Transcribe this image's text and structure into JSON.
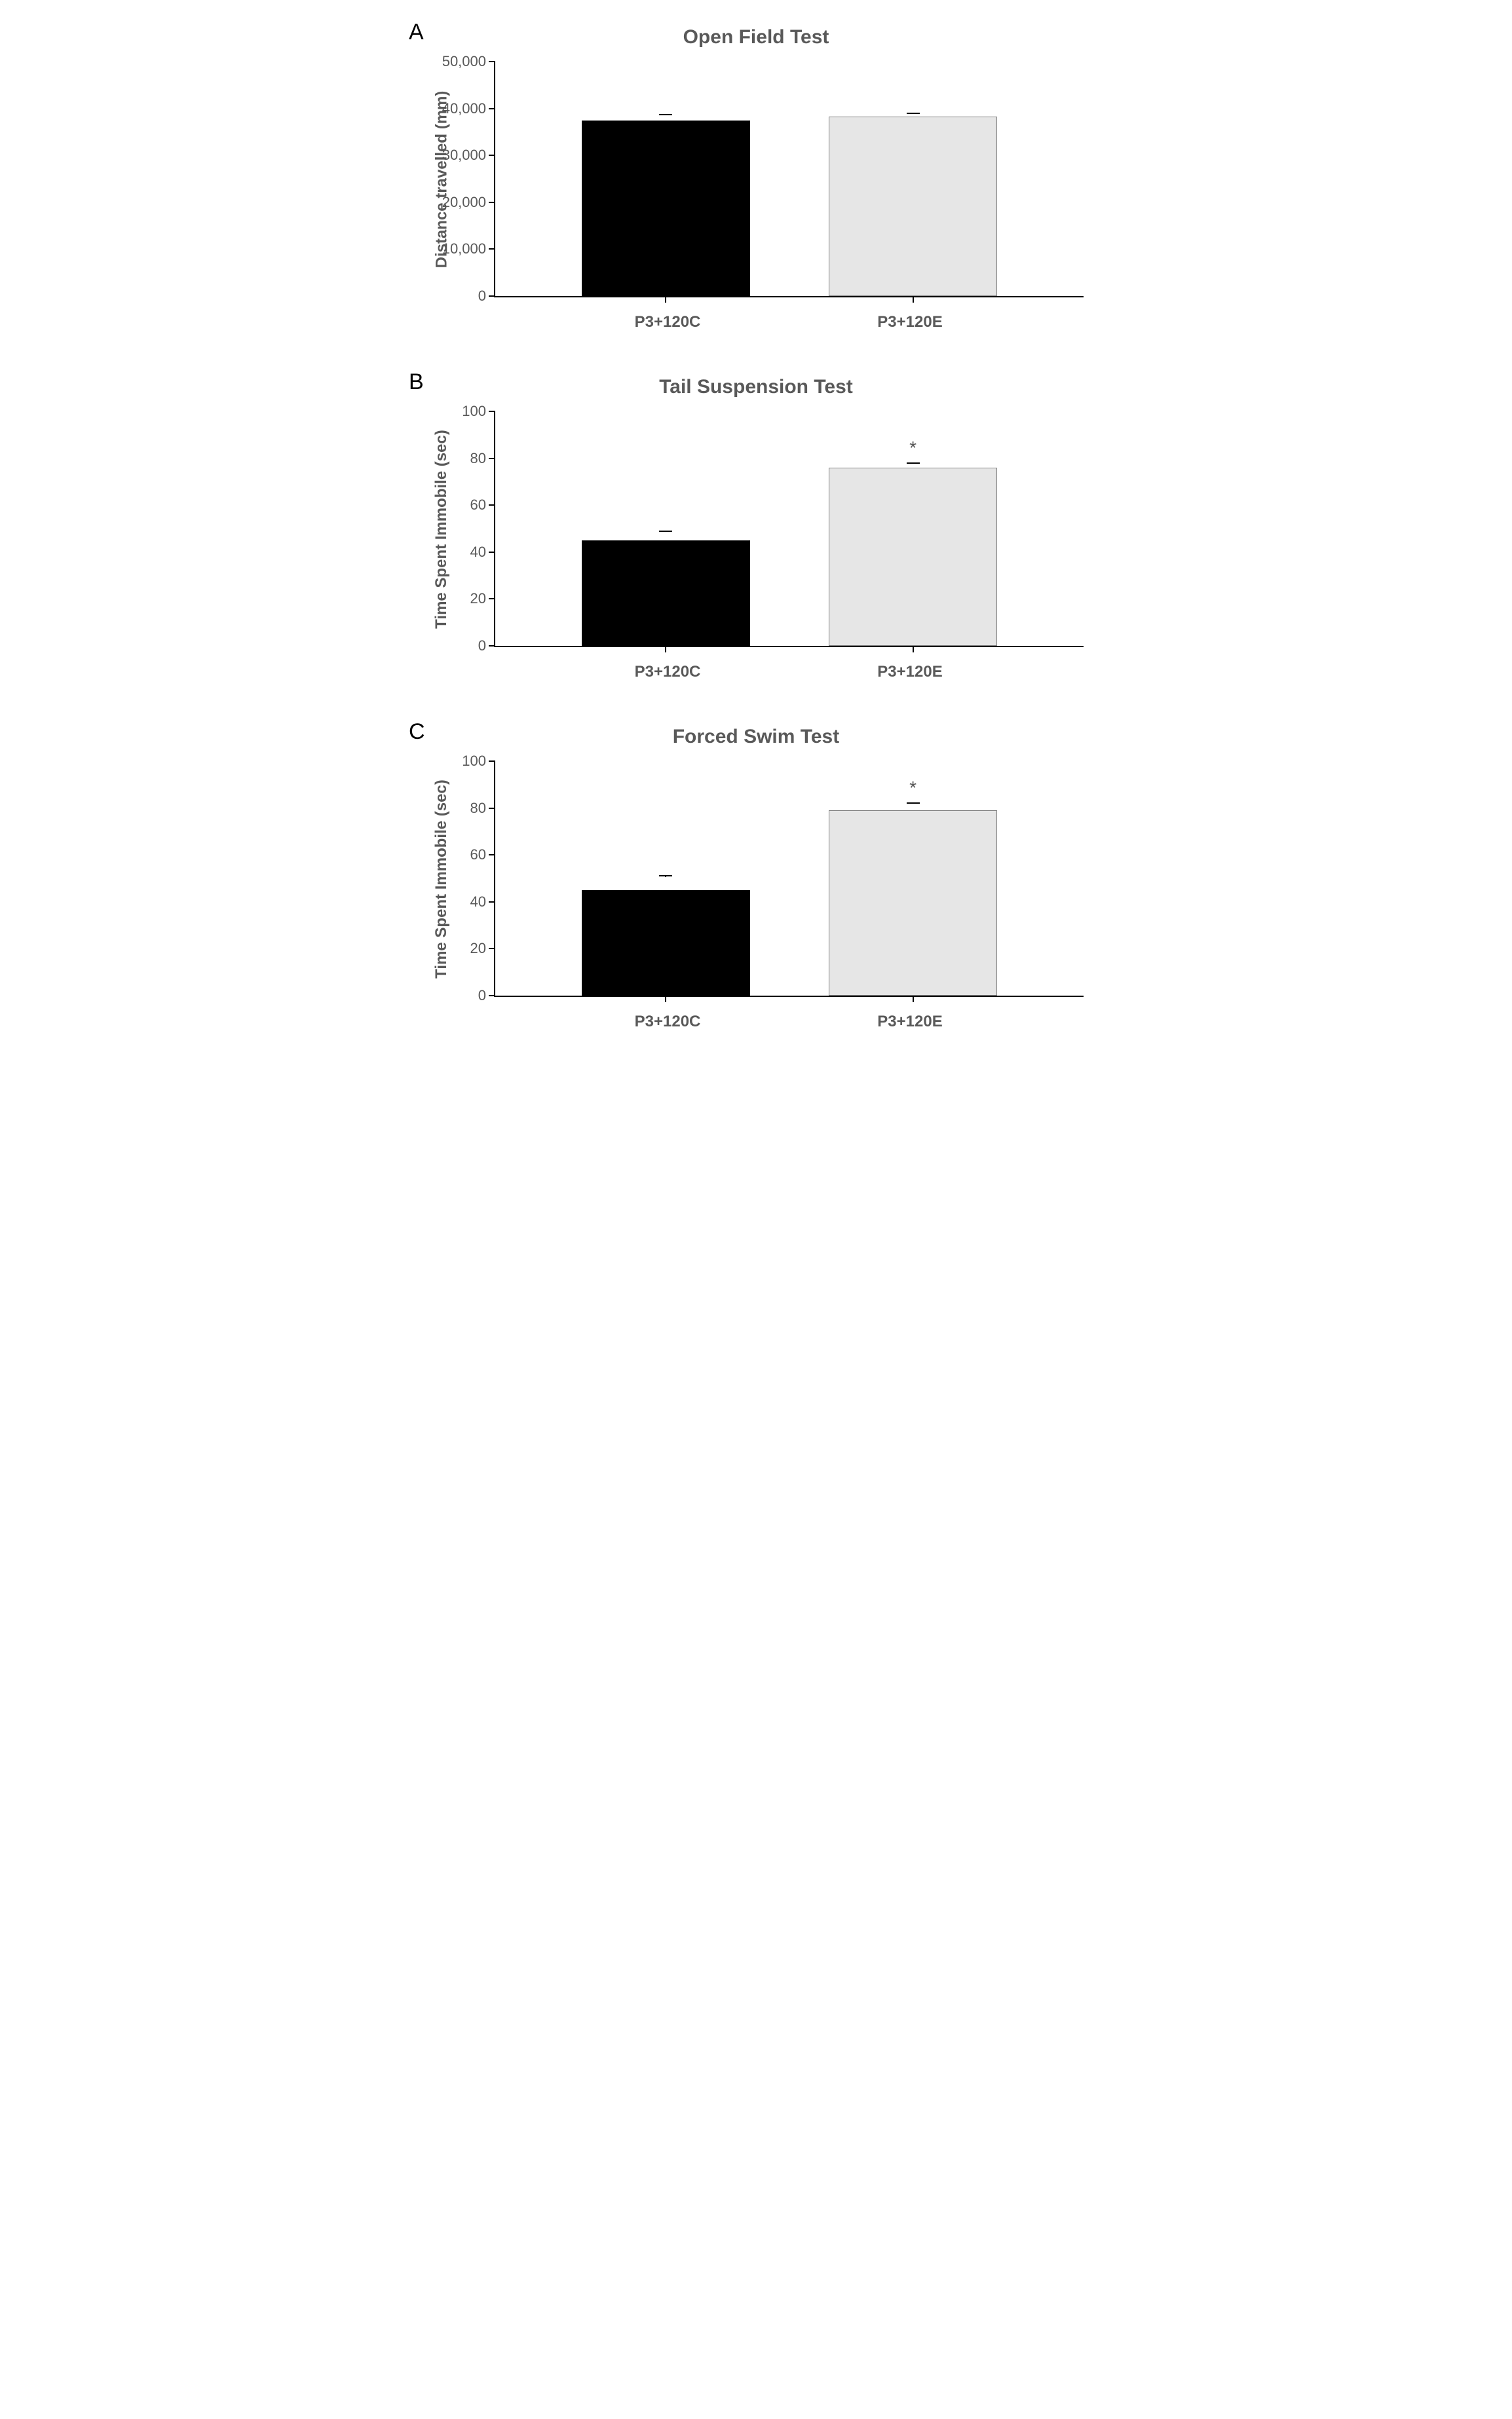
{
  "panels": [
    {
      "letter": "A",
      "title": "Open Field Test",
      "ylabel": "Distance travelled (mm)",
      "ymax": 50000,
      "ytick_step": 10000,
      "ytick_labels": [
        "0",
        "10,000",
        "20,000",
        "30,000",
        "40,000",
        "50,000"
      ],
      "categories": [
        "P3+120C",
        "P3+120E"
      ],
      "bars": [
        {
          "value": 37500,
          "error": 1200,
          "fill": "#000000",
          "border": "#000000",
          "sig": ""
        },
        {
          "value": 38300,
          "error": 700,
          "fill": "#e6e6e6",
          "border": "#7f7f7f",
          "sig": ""
        }
      ],
      "title_fontsize": 30,
      "label_fontsize": 24,
      "tick_fontsize": 22,
      "text_color": "#595959",
      "axis_color": "#000000",
      "background": "#ffffff"
    },
    {
      "letter": "B",
      "title": "Tail Suspension Test",
      "ylabel": "Time Spent Immobile (sec)",
      "ymax": 100,
      "ytick_step": 20,
      "ytick_labels": [
        "0",
        "20",
        "40",
        "60",
        "80",
        "100"
      ],
      "categories": [
        "P3+120C",
        "P3+120E"
      ],
      "bars": [
        {
          "value": 45,
          "error": 4,
          "fill": "#000000",
          "border": "#000000",
          "sig": ""
        },
        {
          "value": 76,
          "error": 2,
          "fill": "#e6e6e6",
          "border": "#7f7f7f",
          "sig": "*"
        }
      ],
      "title_fontsize": 30,
      "label_fontsize": 24,
      "tick_fontsize": 22,
      "text_color": "#595959",
      "axis_color": "#000000",
      "background": "#ffffff"
    },
    {
      "letter": "C",
      "title": "Forced Swim Test",
      "ylabel": "Time Spent Immobile (sec)",
      "ymax": 100,
      "ytick_step": 20,
      "ytick_labels": [
        "0",
        "20",
        "40",
        "60",
        "80",
        "100"
      ],
      "categories": [
        "P3+120C",
        "P3+120E"
      ],
      "bars": [
        {
          "value": 45,
          "error": 6,
          "fill": "#000000",
          "border": "#000000",
          "sig": ""
        },
        {
          "value": 79,
          "error": 3,
          "fill": "#e6e6e6",
          "border": "#7f7f7f",
          "sig": "*"
        }
      ],
      "title_fontsize": 30,
      "label_fontsize": 24,
      "tick_fontsize": 22,
      "text_color": "#595959",
      "axis_color": "#000000",
      "background": "#ffffff"
    }
  ]
}
